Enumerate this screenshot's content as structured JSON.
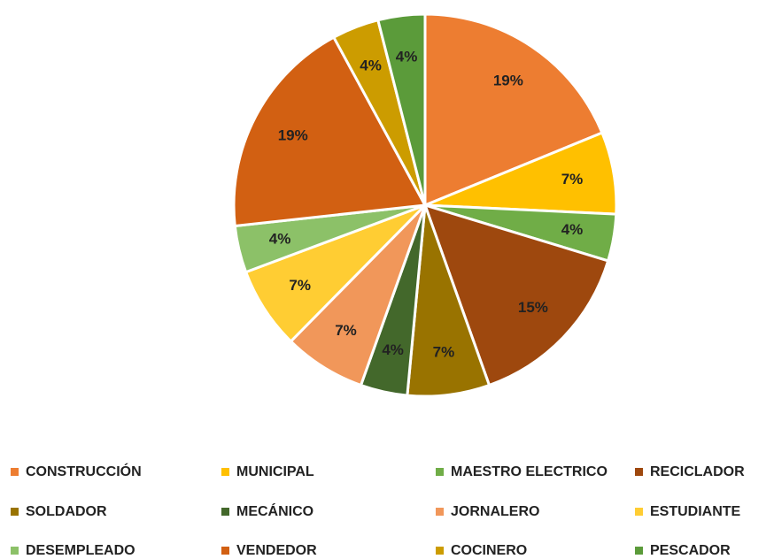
{
  "chart_data": {
    "type": "pie",
    "categories": [
      "CONSTRUCCIÓN",
      "MUNICIPAL",
      "MAESTRO ELECTRICO",
      "RECICLADOR",
      "SOLDADOR",
      "MECÁNICO",
      "JORNALERO",
      "ESTUDIANTE",
      "DESEMPLEADO",
      "VENDEDOR",
      "COCINERO",
      "PESCADOR"
    ],
    "values": [
      19,
      7,
      4,
      15,
      7,
      4,
      7,
      7,
      4,
      19,
      4,
      4
    ],
    "value_labels": [
      "19%",
      "7%",
      "4%",
      "15%",
      "7%",
      "4%",
      "7%",
      "7%",
      "4%",
      "19%",
      "4%",
      "4%"
    ],
    "colors": [
      "#ED7D31",
      "#FFC000",
      "#70AD47",
      "#9E480E",
      "#997300",
      "#43682B",
      "#F1975A",
      "#FFCD33",
      "#8CC168",
      "#D26012",
      "#CC9C00",
      "#5B9B3A"
    ],
    "legend": "bottom"
  }
}
